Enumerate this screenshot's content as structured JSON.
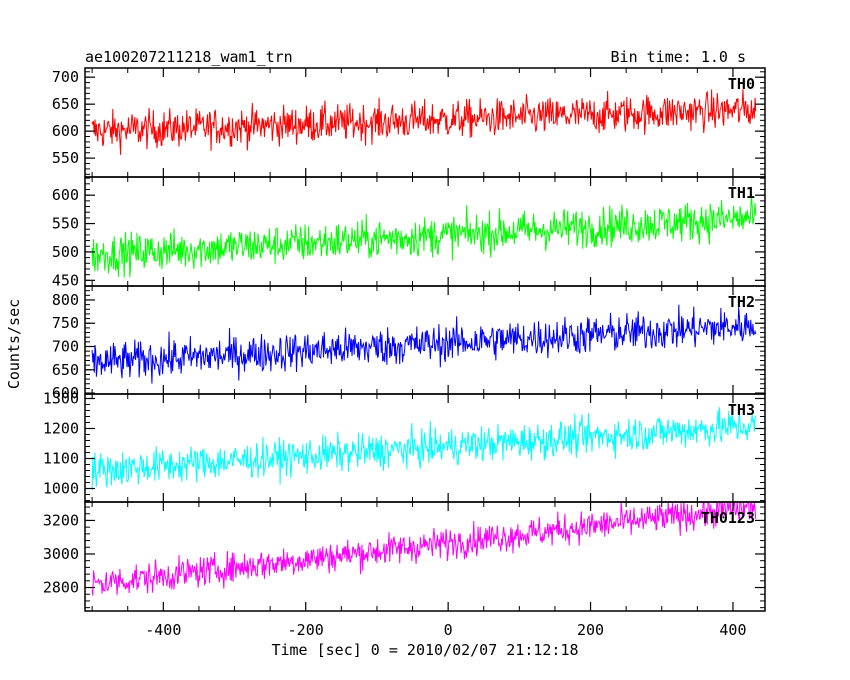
{
  "header": {
    "title": "ae100207211218_wam1_trn",
    "bin_time": "Bin time: 1.0 s"
  },
  "chart_data": {
    "type": "line",
    "xlabel": "Time [sec] 0 = 2010/02/07 21:12:18",
    "ylabel": "Counts/sec",
    "xlim": [
      -510,
      445
    ],
    "x_ticks": [
      -400,
      -200,
      0,
      200,
      400
    ],
    "x_range": [
      -500,
      432
    ],
    "panels": [
      {
        "label": "TH0",
        "color": "#ff0000",
        "ylim": [
          515,
          717
        ],
        "ticks": [
          550,
          600,
          650,
          700
        ],
        "trend": [
          600,
          640
        ],
        "noise": 32
      },
      {
        "label": "TH1",
        "color": "#00ff00",
        "ylim": [
          440,
          632
        ],
        "ticks": [
          450,
          500,
          550,
          600
        ],
        "trend": [
          495,
          560
        ],
        "noise": 32
      },
      {
        "label": "TH2",
        "color": "#0000ff",
        "ylim": [
          598,
          830
        ],
        "ticks": [
          600,
          650,
          700,
          750,
          800
        ],
        "trend": [
          665,
          745
        ],
        "noise": 38
      },
      {
        "label": "TH3",
        "color": "#00ffff",
        "ylim": [
          955,
          1315
        ],
        "ticks": [
          1000,
          1100,
          1200,
          1300
        ],
        "trend": [
          1060,
          1210
        ],
        "noise": 55
      },
      {
        "label": "TH0123",
        "color": "#ff00ff",
        "ylim": [
          2660,
          3310
        ],
        "ticks": [
          2800,
          3000,
          3200
        ],
        "trend": [
          2820,
          3280
        ],
        "noise": 85
      }
    ]
  }
}
